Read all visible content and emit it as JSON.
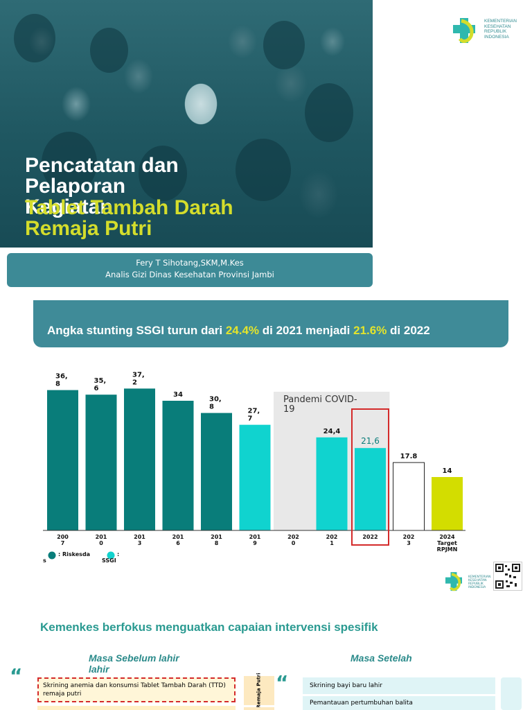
{
  "slide1": {
    "title_white": [
      "Pencatatan dan",
      "Pelaporan",
      "Kegiatan"
    ],
    "title_yellow": [
      "Tablet Tambah Darah",
      "Remaja Putri"
    ],
    "author": "Fery T Sihotang,SKM,M.Kes",
    "author_role": "Analis Gizi Dinas Kesehatan Provinsi Jambi",
    "logo_text": [
      "KEMENTERIAN",
      "KESEHATAN",
      "REPUBLIK",
      "INDONESIA"
    ]
  },
  "slide2": {
    "banner": {
      "part1": "Angka stunting SSGI turun dari ",
      "hl1": "24.4%",
      "part2": " di 2021 menjadi ",
      "hl2": "21.6%",
      "part3": " di 2022"
    },
    "logo_text": [
      "KEMENTERIAN",
      "KESEHATAN",
      "REPUBLIK",
      "INDONESIA"
    ]
  },
  "chart_data": {
    "type": "bar",
    "categories": [
      "2007",
      "2010",
      "2013",
      "2016",
      "2018",
      "2019",
      "2020",
      "2021",
      "2022",
      "2023",
      "2024\nTarget RPJMN"
    ],
    "values": [
      36.8,
      35.6,
      37.2,
      34,
      30.8,
      27.7,
      null,
      24.4,
      21.6,
      17.8,
      14
    ],
    "data_labels": [
      "36,\n8",
      "35,\n6",
      "37,\n2",
      "34",
      "30,\n8",
      "27,\n7",
      "",
      "24,4",
      "21,6",
      "17.8",
      "14"
    ],
    "tick_labels": [
      "200\n7",
      "201\n0",
      "201\n3",
      "201\n6",
      "201\n8",
      "201\n9",
      "202\n0",
      "202\n1",
      "2022",
      "202\n3",
      "2024\nTarget\nRPJMN"
    ],
    "bar_kinds": [
      "riskesdas",
      "riskesdas",
      "riskesdas",
      "riskesdas",
      "riskesdas",
      "ssgi",
      "none",
      "ssgi",
      "ssgi",
      "target-outline",
      "target"
    ],
    "ylim": [
      0,
      40
    ],
    "annotation": "Pandemi COVID-\n19",
    "highlight_category": "2022",
    "legend": [
      {
        "name": ": Riskesda\ns",
        "color": "#097d7a"
      },
      {
        "name": ":\nSSGI",
        "color": "#12d2cd"
      }
    ],
    "colors": {
      "riskesdas": "#097d7a",
      "ssgi": "#10d3cf",
      "target": "#d3dd00",
      "highlight": "#d42a2a",
      "pandemic_bg": "#e8e8e8"
    }
  },
  "slide3": {
    "title": "Kemenkes berfokus menguatkan capaian intervensi spesifik",
    "masa_sebelum": "Masa Sebelum lahir lahir",
    "masa_setelah": "Masa Setelah",
    "skrining": "Skrining anemia dan konsumsi Tablet Tambah Darah (TTD) remaja putri",
    "tag": "Remaja Putri",
    "item1": "Skrining bayi baru lahir",
    "item2": "Pemantauan pertumbuhan balita",
    "quote": "“"
  }
}
